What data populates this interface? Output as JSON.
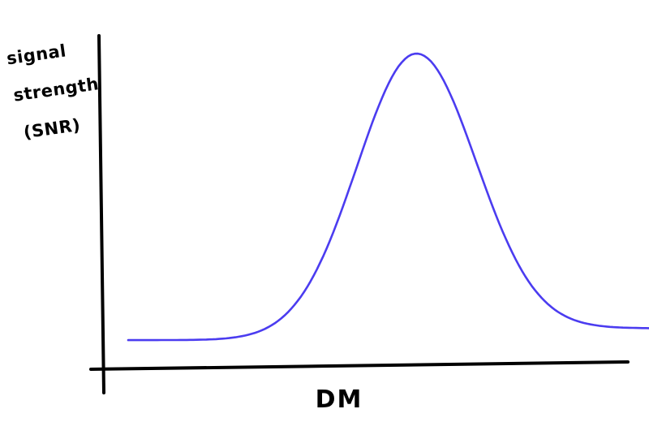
{
  "chart_data": {
    "type": "line",
    "title": "",
    "xlabel": "DM",
    "ylabel_lines": [
      "signal",
      "strength",
      "(SNR)"
    ],
    "series": [
      {
        "color": "#4b3cf0",
        "curve": {
          "shape": "gaussian",
          "baseline_left": 0.03,
          "baseline_right": 0.07,
          "peak_value": 1.0,
          "peak_position": 0.59,
          "width": 0.113
        }
      }
    ],
    "axes_color": "#000000",
    "ticks": false,
    "grid": false,
    "legend": "none"
  }
}
